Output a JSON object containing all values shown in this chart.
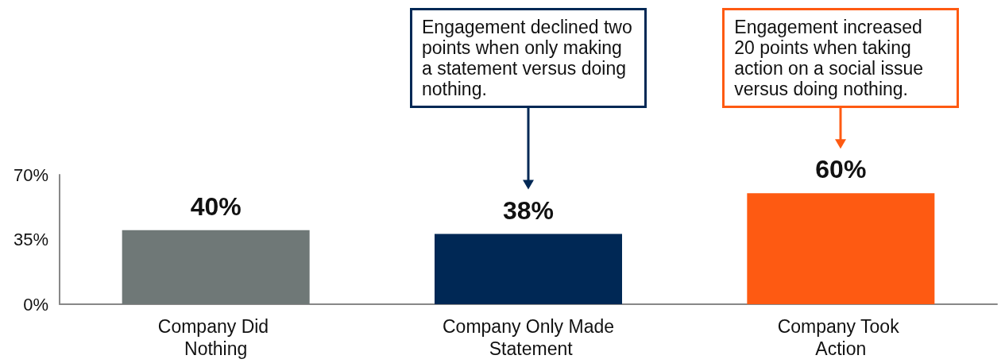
{
  "chart_data": {
    "type": "bar",
    "categories": [
      "Company Did Nothing",
      "Company Only Made Statement",
      "Company Took Action"
    ],
    "values": [
      40,
      38,
      60
    ],
    "colors": [
      "#6f7877",
      "#002855",
      "#fe5a12"
    ],
    "value_labels": [
      "40%",
      "38%",
      "60%"
    ],
    "ylim": [
      0,
      70
    ],
    "yticks": [
      {
        "value": 0,
        "label": "0%"
      },
      {
        "value": 35,
        "label": "35%"
      },
      {
        "value": 70,
        "label": "70%"
      }
    ],
    "grid": false,
    "annotations": [
      "Engagement declined two points when only making a statement versus doing nothing.",
      "Engagement increased 20 points when taking action on a social issue versus doing nothing."
    ]
  }
}
